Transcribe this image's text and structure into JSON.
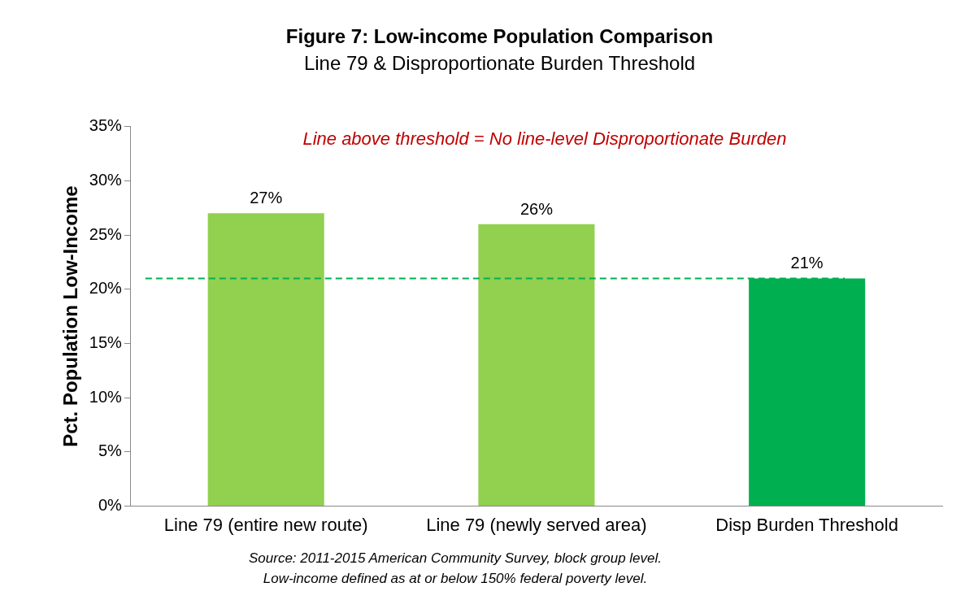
{
  "chart_data": {
    "type": "bar",
    "title": "Figure 7: Low-income Population Comparison",
    "subtitle": "Line 79 & Disproportionate Burden Threshold",
    "ylabel": "Pct. Population Low-Income",
    "categories": [
      "Line 79 (entire new route)",
      "Line 79 (newly served area)",
      "Disp Burden Threshold"
    ],
    "values": [
      27,
      26,
      21
    ],
    "colors": [
      "#92d050",
      "#92d050",
      "#00b050"
    ],
    "value_labels": [
      "27%",
      "26%",
      "21%"
    ],
    "ylim": [
      0,
      35
    ],
    "yticks": [
      {
        "value": 0,
        "label": "0%"
      },
      {
        "value": 5,
        "label": "5%"
      },
      {
        "value": 10,
        "label": "10%"
      },
      {
        "value": 15,
        "label": "15%"
      },
      {
        "value": 20,
        "label": "20%"
      },
      {
        "value": 25,
        "label": "25%"
      },
      {
        "value": 30,
        "label": "30%"
      },
      {
        "value": 35,
        "label": "35%"
      }
    ],
    "ref_lines": [
      {
        "axis": "y",
        "value": 21,
        "label": null,
        "color": "#00b050",
        "line_style": "dashed"
      }
    ],
    "annotations": [
      "Line above threshold = No line-level Disproportionate Burden",
      "Source: 2011-2015 American Community Survey, block group level.",
      "Low-income defined as at or below 150% federal poverty level."
    ],
    "grid": false,
    "legend": false
  }
}
